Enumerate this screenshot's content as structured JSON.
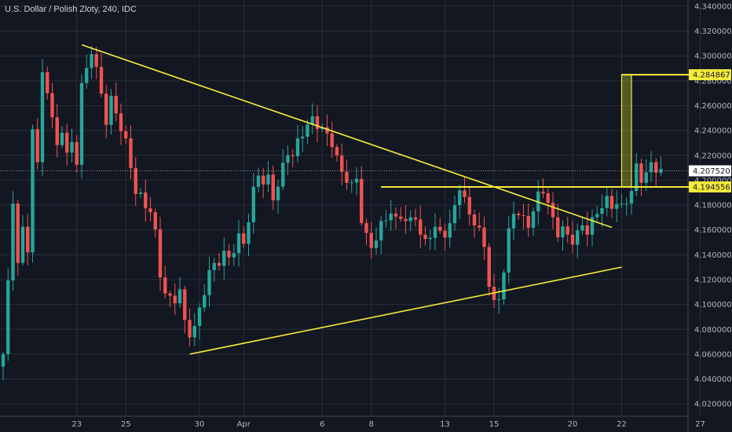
{
  "chart_data": {
    "type": "candlestick",
    "title": "U.S. Dollar / Polish Zloty, 240, IDC",
    "colors": {
      "background": "#131722",
      "up": "#26a69a",
      "down": "#ef5350",
      "annotation": "#f5eb3a",
      "grid": "#2a2e39",
      "axis_text": "#b2b5be"
    },
    "ylim": [
      4.01,
      4.345
    ],
    "y_ticks": [
      {
        "label": "4.340000",
        "value": 4.34
      },
      {
        "label": "4.320000",
        "value": 4.32
      },
      {
        "label": "4.300000",
        "value": 4.3
      },
      {
        "label": "4.280000",
        "value": 4.28
      },
      {
        "label": "4.260000",
        "value": 4.26
      },
      {
        "label": "4.240000",
        "value": 4.24
      },
      {
        "label": "4.220000",
        "value": 4.22
      },
      {
        "label": "4.200000",
        "value": 4.2
      },
      {
        "label": "4.180000",
        "value": 4.18
      },
      {
        "label": "4.160000",
        "value": 4.16
      },
      {
        "label": "4.140000",
        "value": 4.14
      },
      {
        "label": "4.120000",
        "value": 4.12
      },
      {
        "label": "4.100000",
        "value": 4.1
      },
      {
        "label": "4.080000",
        "value": 4.08
      },
      {
        "label": "4.060000",
        "value": 4.06
      },
      {
        "label": "4.040000",
        "value": 4.04
      },
      {
        "label": "4.020000",
        "value": 4.02
      }
    ],
    "x_ticks": [
      {
        "label": "23",
        "bar": 15
      },
      {
        "label": "25",
        "bar": 25
      },
      {
        "label": "30",
        "bar": 40
      },
      {
        "label": "Apr",
        "bar": 49
      },
      {
        "label": "6",
        "bar": 65
      },
      {
        "label": "8",
        "bar": 75
      },
      {
        "label": "13",
        "bar": 90
      },
      {
        "label": "15",
        "bar": 100
      },
      {
        "label": "20",
        "bar": 116
      },
      {
        "label": "22",
        "bar": 126
      },
      {
        "label": "27",
        "bar": 142
      }
    ],
    "price_labels": [
      {
        "text": "4.284867",
        "value": 4.284867
      },
      {
        "text": "4.207520",
        "value": 4.20752
      },
      {
        "text": "4.194556",
        "value": 4.194556
      }
    ],
    "keypoints": [
      [
        0,
        4.06
      ],
      [
        1,
        4.12
      ],
      [
        2,
        4.175
      ],
      [
        3,
        4.13
      ],
      [
        4,
        4.16
      ],
      [
        5,
        4.135
      ],
      [
        6,
        4.24
      ],
      [
        7,
        4.215
      ],
      [
        8,
        4.285
      ],
      [
        9,
        4.275
      ],
      [
        10,
        4.255
      ],
      [
        11,
        4.23
      ],
      [
        12,
        4.245
      ],
      [
        13,
        4.225
      ],
      [
        14,
        4.23
      ],
      [
        15,
        4.215
      ],
      [
        16,
        4.275
      ],
      [
        17,
        4.285
      ],
      [
        18,
        4.3
      ],
      [
        19,
        4.285
      ],
      [
        20,
        4.265
      ],
      [
        21,
        4.245
      ],
      [
        22,
        4.265
      ],
      [
        23,
        4.255
      ],
      [
        24,
        4.245
      ],
      [
        25,
        4.235
      ],
      [
        26,
        4.215
      ],
      [
        27,
        4.195
      ],
      [
        28,
        4.19
      ],
      [
        29,
        4.18
      ],
      [
        30,
        4.175
      ],
      [
        31,
        4.155
      ],
      [
        32,
        4.12
      ],
      [
        33,
        4.105
      ],
      [
        34,
        4.1
      ],
      [
        35,
        4.1
      ],
      [
        36,
        4.11
      ],
      [
        37,
        4.085
      ],
      [
        38,
        4.078
      ],
      [
        39,
        4.085
      ],
      [
        40,
        4.1
      ],
      [
        41,
        4.115
      ],
      [
        42,
        4.13
      ],
      [
        43,
        4.135
      ],
      [
        44,
        4.135
      ],
      [
        45,
        4.14
      ],
      [
        46,
        4.135
      ],
      [
        47,
        4.14
      ],
      [
        48,
        4.15
      ],
      [
        49,
        4.145
      ],
      [
        50,
        4.165
      ],
      [
        51,
        4.19
      ],
      [
        52,
        4.205
      ],
      [
        53,
        4.2
      ],
      [
        54,
        4.205
      ],
      [
        55,
        4.19
      ],
      [
        56,
        4.2
      ],
      [
        57,
        4.215
      ],
      [
        58,
        4.225
      ],
      [
        59,
        4.22
      ],
      [
        60,
        4.23
      ],
      [
        61,
        4.235
      ],
      [
        62,
        4.24
      ],
      [
        63,
        4.245
      ],
      [
        64,
        4.24
      ],
      [
        65,
        4.238
      ],
      [
        66,
        4.235
      ],
      [
        67,
        4.23
      ],
      [
        68,
        4.22
      ],
      [
        69,
        4.21
      ],
      [
        70,
        4.205
      ],
      [
        71,
        4.2
      ],
      [
        72,
        4.205
      ],
      [
        73,
        4.17
      ],
      [
        74,
        4.155
      ],
      [
        75,
        4.145
      ],
      [
        76,
        4.15
      ],
      [
        77,
        4.16
      ],
      [
        78,
        4.165
      ],
      [
        79,
        4.17
      ],
      [
        80,
        4.165
      ],
      [
        81,
        4.17
      ],
      [
        82,
        4.168
      ],
      [
        83,
        4.17
      ],
      [
        84,
        4.175
      ],
      [
        85,
        4.16
      ],
      [
        86,
        4.155
      ],
      [
        87,
        4.16
      ],
      [
        88,
        4.163
      ],
      [
        89,
        4.158
      ],
      [
        90,
        4.155
      ],
      [
        91,
        4.16
      ],
      [
        92,
        4.175
      ],
      [
        93,
        4.19
      ],
      [
        94,
        4.18
      ],
      [
        95,
        4.17
      ],
      [
        96,
        4.165
      ],
      [
        97,
        4.16
      ],
      [
        98,
        4.15
      ],
      [
        99,
        4.12
      ],
      [
        100,
        4.105
      ],
      [
        101,
        4.11
      ],
      [
        102,
        4.13
      ],
      [
        103,
        4.16
      ],
      [
        104,
        4.175
      ],
      [
        105,
        4.17
      ],
      [
        106,
        4.165
      ],
      [
        107,
        4.16
      ],
      [
        108,
        4.17
      ],
      [
        109,
        4.185
      ],
      [
        110,
        4.19
      ],
      [
        111,
        4.18
      ],
      [
        112,
        4.17
      ],
      [
        113,
        4.16
      ],
      [
        114,
        4.165
      ],
      [
        115,
        4.16
      ],
      [
        116,
        4.155
      ],
      [
        117,
        4.16
      ],
      [
        118,
        4.165
      ],
      [
        119,
        4.158
      ],
      [
        120,
        4.165
      ],
      [
        121,
        4.17
      ],
      [
        122,
        4.175
      ],
      [
        123,
        4.18
      ],
      [
        124,
        4.175
      ],
      [
        125,
        4.18
      ],
      [
        126,
        4.178
      ],
      [
        127,
        4.185
      ],
      [
        128,
        4.195
      ],
      [
        129,
        4.215
      ],
      [
        130,
        4.205
      ],
      [
        131,
        4.21
      ],
      [
        132,
        4.215
      ],
      [
        133,
        4.21
      ],
      [
        134,
        4.207
      ]
    ],
    "annotations": {
      "upper_trendline": [
        [
          16,
          4.309
        ],
        [
          124,
          4.162
        ]
      ],
      "lower_trendline": [
        [
          38,
          4.06
        ],
        [
          126,
          4.13
        ]
      ],
      "resistance_line": [
        [
          77,
          4.1946
        ],
        [
          145,
          4.1946
        ]
      ],
      "target_line": [
        [
          126,
          4.2849
        ],
        [
          145,
          4.2849
        ]
      ],
      "projection_box": {
        "bar_from": 126,
        "bar_to": 128,
        "low": 4.1946,
        "high": 4.2849
      },
      "current_price_line": 4.20752
    }
  }
}
